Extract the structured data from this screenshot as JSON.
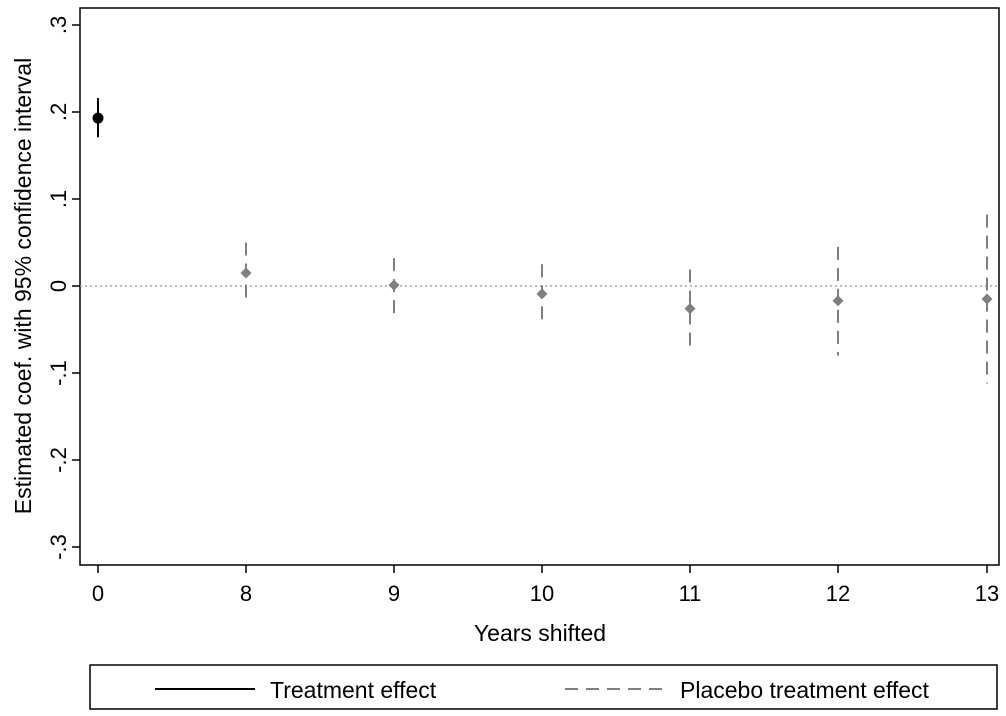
{
  "chart_data": {
    "type": "scatter",
    "title": "",
    "xlabel": "Years shifted",
    "ylabel": "Estimated coef. with 95% confidence interval",
    "categories": [
      "0",
      "8",
      "9",
      "10",
      "11",
      "12",
      "13"
    ],
    "yticks": [
      ".3",
      ".2",
      ".1",
      "0",
      "-.1",
      "-.2",
      "-.3"
    ],
    "ylim": [
      -0.3,
      0.3
    ],
    "reference_line": 0,
    "grid": false,
    "legend_position": "bottom",
    "series": [
      {
        "name": "Treatment effect",
        "style": "solid",
        "color": "#000000",
        "marker": "circle",
        "points": [
          {
            "x": "0",
            "y": 0.193,
            "lo": 0.171,
            "hi": 0.216
          }
        ]
      },
      {
        "name": "Placebo treatment effect",
        "style": "dashed",
        "color": "#7f7f7f",
        "marker": "diamond",
        "points": [
          {
            "x": "8",
            "y": 0.015,
            "lo": -0.022,
            "hi": 0.05
          },
          {
            "x": "9",
            "y": 0.001,
            "lo": -0.04,
            "hi": 0.032
          },
          {
            "x": "10",
            "y": -0.009,
            "lo": -0.047,
            "hi": 0.025
          },
          {
            "x": "11",
            "y": -0.026,
            "lo": -0.072,
            "hi": 0.019
          },
          {
            "x": "12",
            "y": -0.017,
            "lo": -0.08,
            "hi": 0.045
          },
          {
            "x": "13",
            "y": -0.015,
            "lo": -0.112,
            "hi": 0.082
          }
        ]
      }
    ]
  }
}
